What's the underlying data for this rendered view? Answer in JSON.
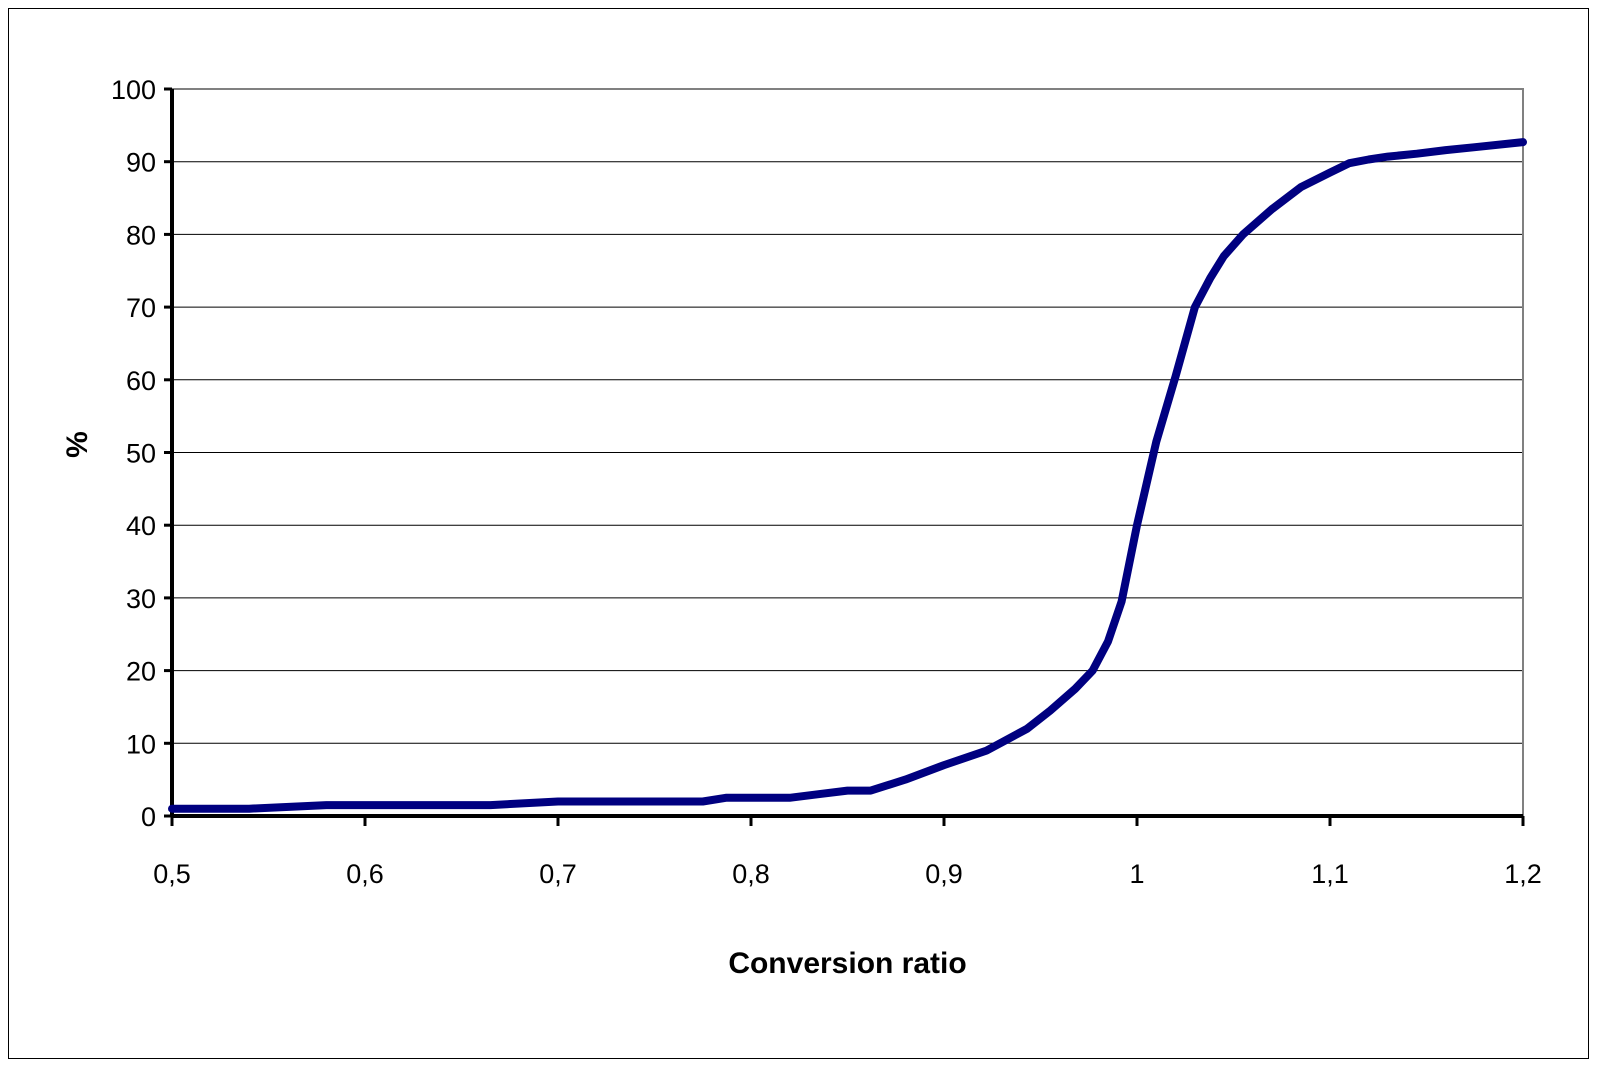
{
  "chart_data": {
    "type": "line",
    "title": "",
    "xlabel": "Conversion ratio",
    "ylabel": "%",
    "xlim": [
      0.5,
      1.2
    ],
    "ylim": [
      0,
      100
    ],
    "x_ticks": [
      "0,5",
      "0,6",
      "0,7",
      "0,8",
      "0,9",
      "1",
      "1,1",
      "1,2"
    ],
    "y_ticks": [
      "0",
      "10",
      "20",
      "30",
      "40",
      "50",
      "60",
      "70",
      "80",
      "90",
      "100"
    ],
    "grid": "horizontal",
    "legend": "none",
    "line_color": "#000080",
    "series": [
      {
        "x": [
          0.5,
          0.54,
          0.58,
          0.62,
          0.665,
          0.7,
          0.74,
          0.775,
          0.787,
          0.82,
          0.835,
          0.85,
          0.862,
          0.88,
          0.9,
          0.922,
          0.943,
          0.955,
          0.968,
          0.977,
          0.985,
          0.992,
          1.0,
          1.01,
          1.02,
          1.03,
          1.038,
          1.045,
          1.055,
          1.07,
          1.085,
          1.1,
          1.11,
          1.12,
          1.13,
          1.145,
          1.16,
          1.175,
          1.2
        ],
        "y": [
          1,
          1,
          1.5,
          1.5,
          1.5,
          2,
          2,
          2,
          2.5,
          2.5,
          3,
          3.5,
          3.5,
          5,
          7,
          9,
          12,
          14.5,
          17.5,
          20,
          24,
          29.5,
          40,
          51.5,
          60.5,
          70,
          74,
          77,
          80,
          83.5,
          86.5,
          88.5,
          89.8,
          90.3,
          90.7,
          91.1,
          91.6,
          92.0,
          92.7
        ]
      }
    ]
  }
}
